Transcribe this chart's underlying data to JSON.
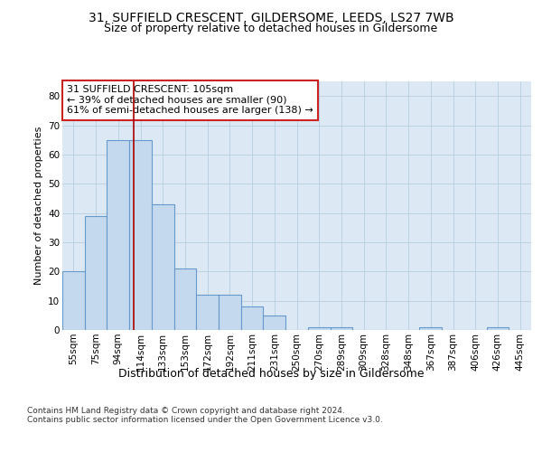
{
  "title": "31, SUFFIELD CRESCENT, GILDERSOME, LEEDS, LS27 7WB",
  "subtitle": "Size of property relative to detached houses in Gildersome",
  "xlabel": "Distribution of detached houses by size in Gildersome",
  "ylabel": "Number of detached properties",
  "categories": [
    "55sqm",
    "75sqm",
    "94sqm",
    "114sqm",
    "133sqm",
    "153sqm",
    "172sqm",
    "192sqm",
    "211sqm",
    "231sqm",
    "250sqm",
    "270sqm",
    "289sqm",
    "309sqm",
    "328sqm",
    "348sqm",
    "367sqm",
    "387sqm",
    "406sqm",
    "426sqm",
    "445sqm"
  ],
  "values": [
    20,
    39,
    65,
    65,
    43,
    21,
    12,
    12,
    8,
    5,
    0,
    1,
    1,
    0,
    0,
    0,
    1,
    0,
    0,
    1,
    0
  ],
  "bar_color": "#c5d9ee",
  "bar_edge_color": "#6699cc",
  "reference_line_x": 2.7,
  "reference_line_color": "#aa0000",
  "annotation_line1": "31 SUFFIELD CRESCENT: 105sqm",
  "annotation_line2": "← 39% of detached houses are smaller (90)",
  "annotation_line3": "61% of semi-detached houses are larger (138) →",
  "annotation_box_edgecolor": "#cc2222",
  "ylim": [
    0,
    85
  ],
  "yticks": [
    0,
    10,
    20,
    30,
    40,
    50,
    60,
    70,
    80
  ],
  "bg_color": "#dce9f5",
  "footer_text": "Contains HM Land Registry data © Crown copyright and database right 2024.\nContains public sector information licensed under the Open Government Licence v3.0.",
  "title_fontsize": 10,
  "subtitle_fontsize": 9,
  "xlabel_fontsize": 9,
  "ylabel_fontsize": 8,
  "tick_fontsize": 7.5,
  "annotation_fontsize": 8,
  "footer_fontsize": 6.5
}
